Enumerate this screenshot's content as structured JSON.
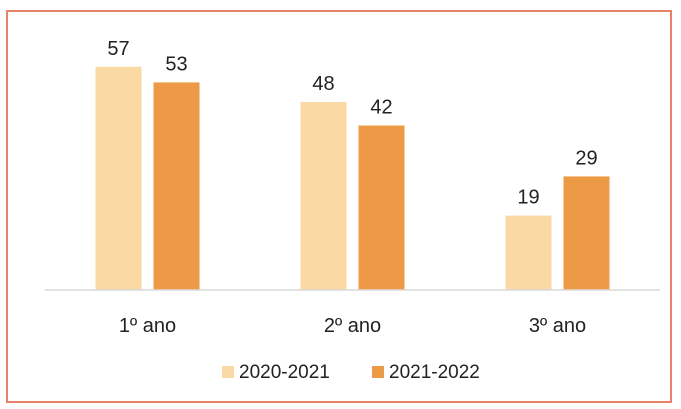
{
  "colors": {
    "series_2020_2021": "#fbd9a4",
    "series_2021_2022": "#ec9a45",
    "axis": "#d9d9d9",
    "frame": "#e8836a"
  },
  "chart_data": {
    "type": "bar",
    "categories": [
      "1º ano",
      "2º ano",
      "3º ano"
    ],
    "series": [
      {
        "name": "2020-2021",
        "values": [
          57,
          48,
          19
        ]
      },
      {
        "name": "2021-2022",
        "values": [
          53,
          42,
          29
        ]
      }
    ],
    "ylim": [
      0,
      60
    ],
    "grid": false,
    "legend": "bottom"
  }
}
